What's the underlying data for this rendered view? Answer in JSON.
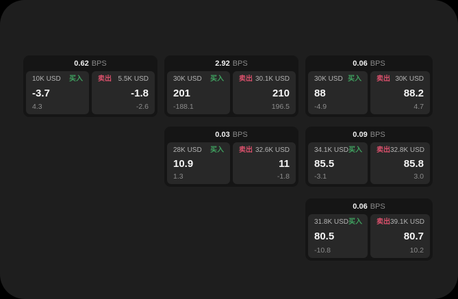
{
  "labels": {
    "bps": "BPS",
    "buy": "买入",
    "sell": "卖出"
  },
  "colors": {
    "page_bg": "#000000",
    "panel_bg": "#1e1e1e",
    "card_bg": "#151515",
    "tile_bg": "#282828",
    "buy_accent": "#3fa05f",
    "sell_accent": "#d9506b"
  },
  "cards": [
    {
      "bps": "0.62",
      "buy": {
        "amount": "10K USD",
        "price": "-3.7",
        "delta": "4.3"
      },
      "sell": {
        "amount": "5.5K USD",
        "price": "-1.8",
        "delta": "-2.6"
      }
    },
    {
      "bps": "2.92",
      "buy": {
        "amount": "30K USD",
        "price": "201",
        "delta": "-188.1"
      },
      "sell": {
        "amount": "30.1K USD",
        "price": "210",
        "delta": "196.5"
      }
    },
    {
      "bps": "0.06",
      "buy": {
        "amount": "30K USD",
        "price": "88",
        "delta": "-4.9"
      },
      "sell": {
        "amount": "30K USD",
        "price": "88.2",
        "delta": "4.7"
      }
    },
    {
      "bps": "0.03",
      "buy": {
        "amount": "28K USD",
        "price": "10.9",
        "delta": "1.3"
      },
      "sell": {
        "amount": "32.6K USD",
        "price": "11",
        "delta": "-1.8"
      }
    },
    {
      "bps": "0.09",
      "buy": {
        "amount": "34.1K USD",
        "price": "85.5",
        "delta": "-3.1"
      },
      "sell": {
        "amount": "32.8K USD",
        "price": "85.8",
        "delta": "3.0"
      }
    },
    {
      "bps": "0.06",
      "buy": {
        "amount": "31.8K USD",
        "price": "80.5",
        "delta": "-10.8"
      },
      "sell": {
        "amount": "39.1K USD",
        "price": "80.7",
        "delta": "10.2"
      }
    }
  ]
}
